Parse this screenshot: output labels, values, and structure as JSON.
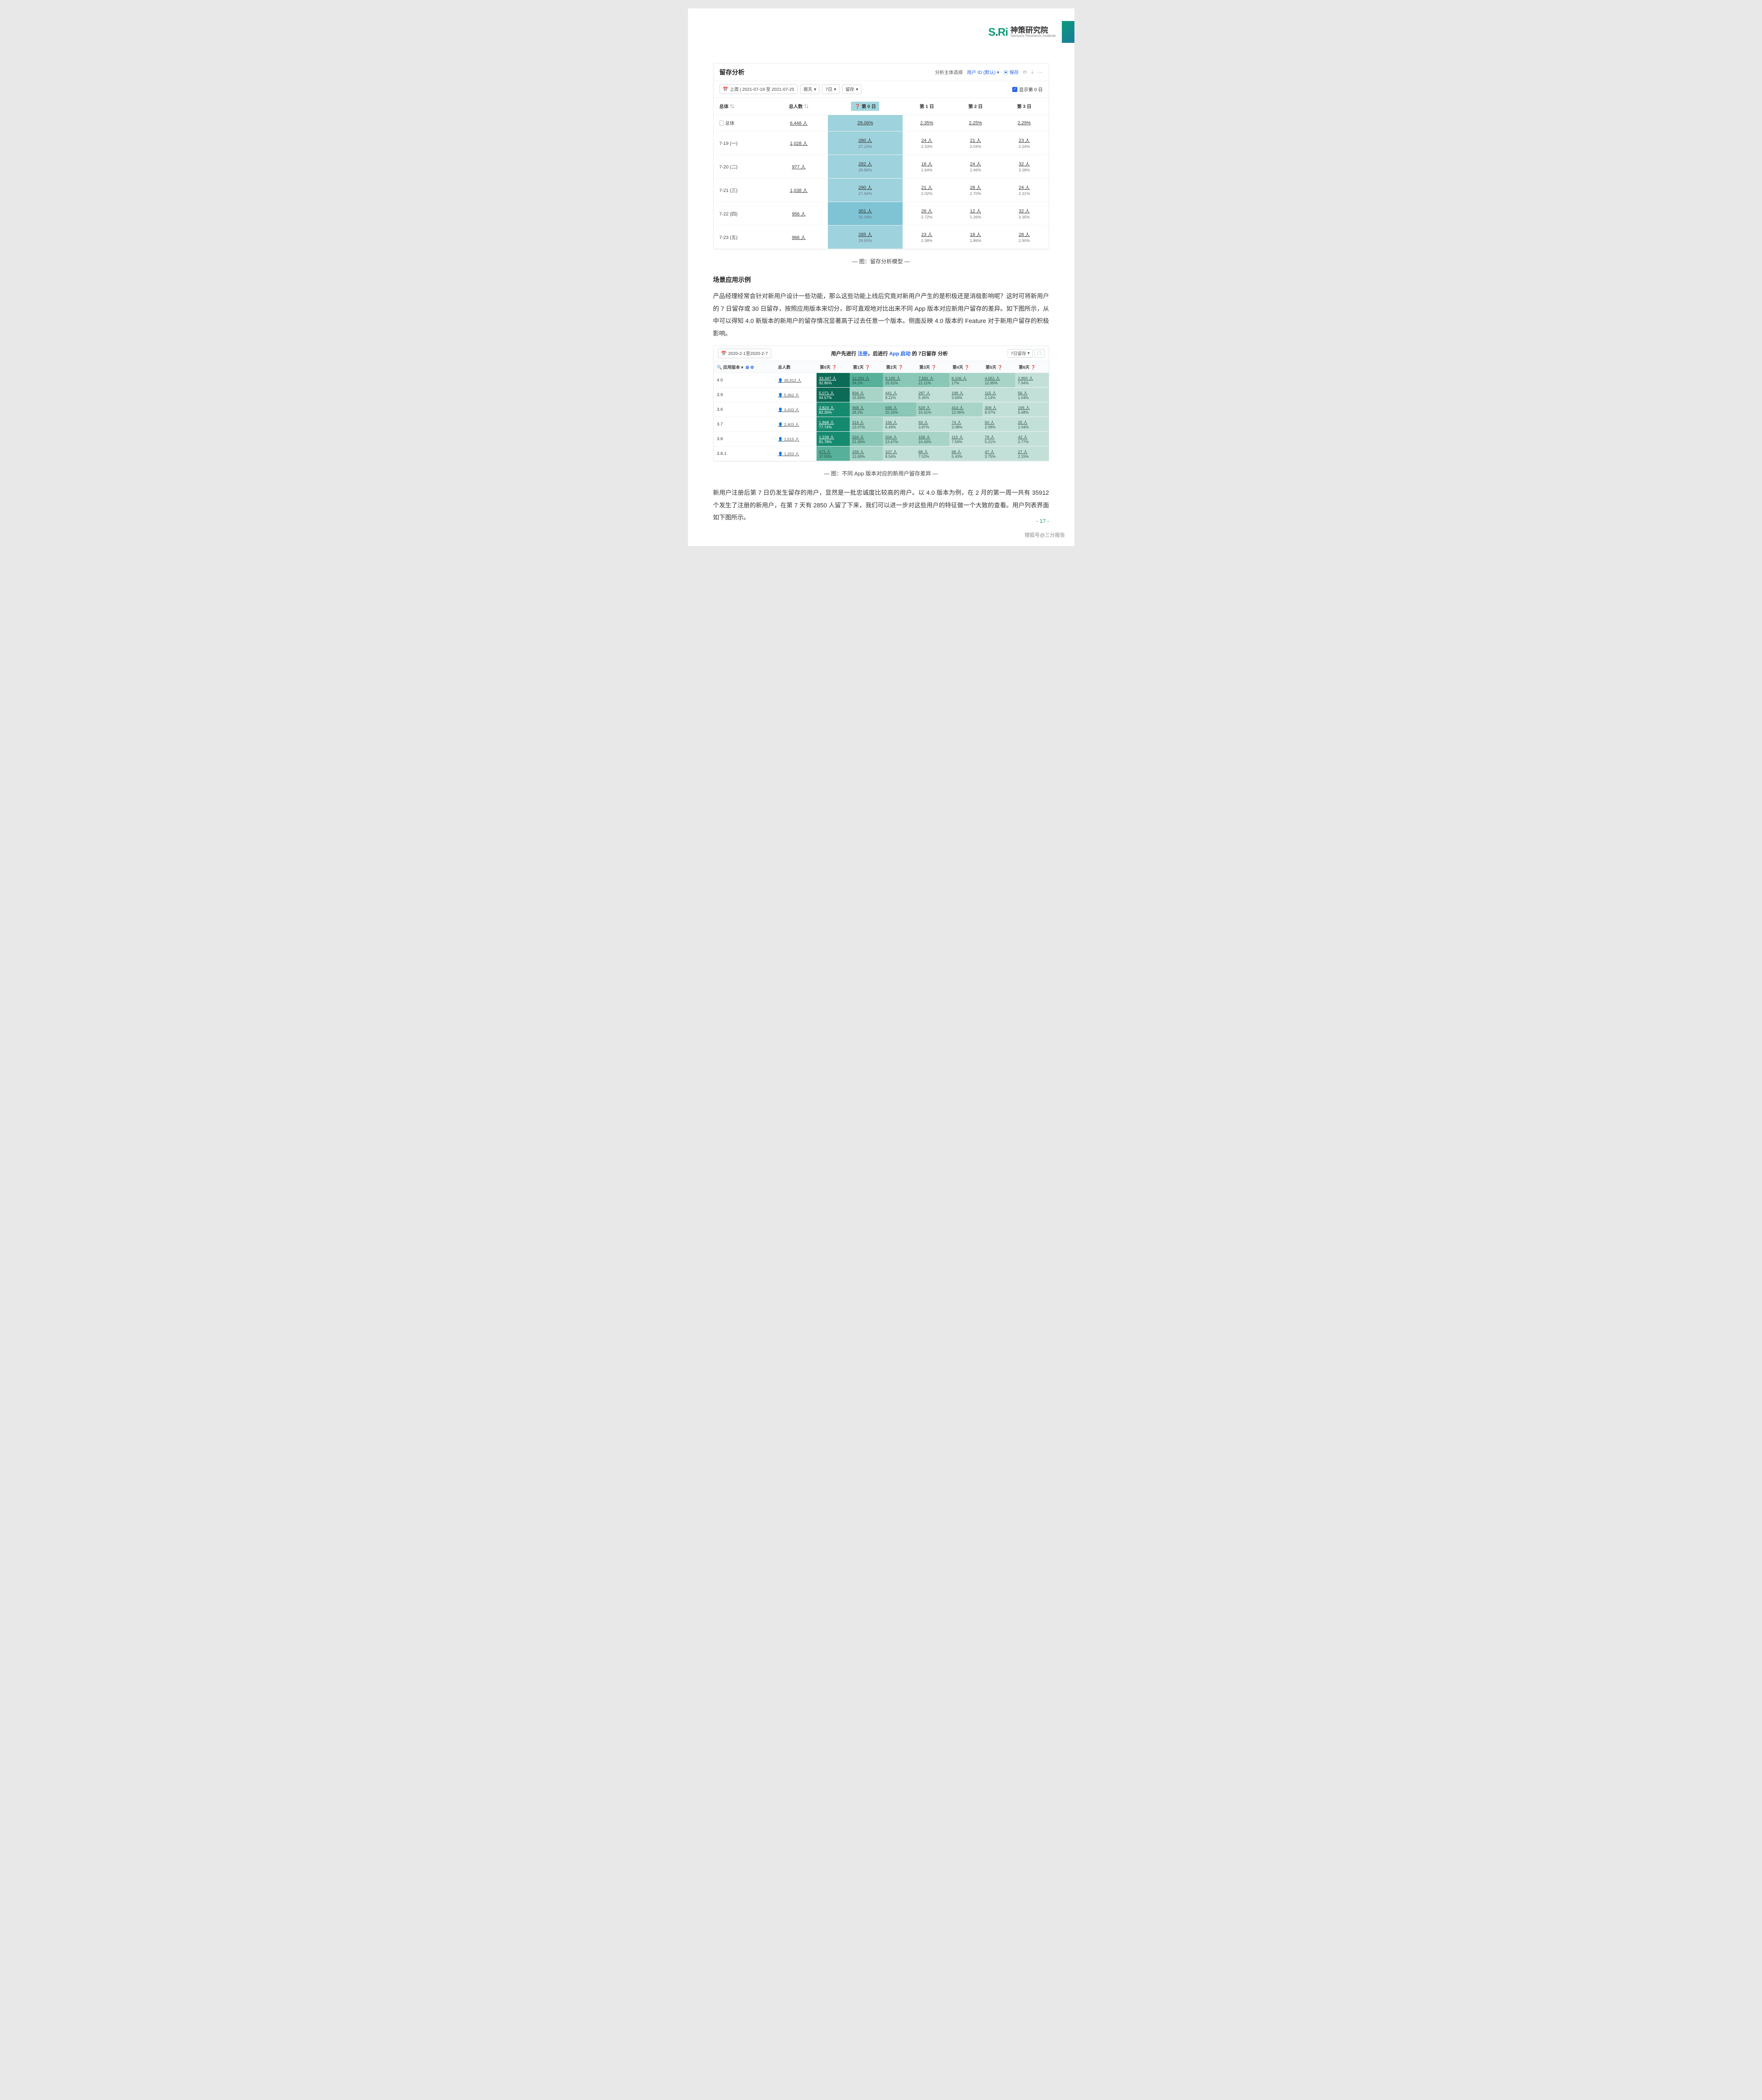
{
  "logo": {
    "mark_left": "S",
    "mark_mid": ".",
    "mark_right": "Ri",
    "cn": "神策研究院",
    "en": "Sensors Research Institute"
  },
  "card1": {
    "title": "留存分析",
    "hd": {
      "label": "分析主体选择",
      "sel": "用户 ID (默认)",
      "save": "保存"
    },
    "filters": {
      "date": "上周 | 2021-07-19 至 2021-07-25",
      "unit": "按天",
      "days": "7日",
      "type": "留存",
      "chk": "显示第 0 日"
    },
    "cols": [
      "总体",
      "总人数",
      "第 0 日",
      "第 1 日",
      "第 2 日",
      "第 3 日"
    ],
    "rows": [
      {
        "k": "总体",
        "n": "6,448 人",
        "d0": {
          "v": "",
          "p": "29.06%"
        },
        "d1": {
          "v": "",
          "p": "2.35%",
          "u": 1
        },
        "d2": {
          "v": "",
          "p": "2.25%",
          "u": 1
        },
        "d3": {
          "v": "",
          "p": "2.29%",
          "u": 1
        }
      },
      {
        "k": "7-19 (一)",
        "n": "1,028 人",
        "d0": {
          "v": "280 人",
          "p": "27.24%"
        },
        "d1": {
          "v": "24 人",
          "p": "2.33%"
        },
        "d2": {
          "v": "21 人",
          "p": "2.04%"
        },
        "d3": {
          "v": "23 人",
          "p": "2.24%"
        }
      },
      {
        "k": "7-20 (二)",
        "n": "977 人",
        "d0": {
          "v": "282 人",
          "p": "28.86%"
        },
        "d1": {
          "v": "16 人",
          "p": "1.64%"
        },
        "d2": {
          "v": "24 人",
          "p": "2.46%"
        },
        "d3": {
          "v": "32 人",
          "p": "3.28%"
        }
      },
      {
        "k": "7-21 (三)",
        "n": "1,038 人",
        "d0": {
          "v": "290 人",
          "p": "27.94%"
        },
        "d1": {
          "v": "21 人",
          "p": "2.02%"
        },
        "d2": {
          "v": "28 人",
          "p": "2.70%"
        },
        "d3": {
          "v": "24 人",
          "p": "2.31%"
        }
      },
      {
        "k": "7-22 (四)",
        "n": "956 人",
        "d0": {
          "v": "301 人",
          "p": "31.49%",
          "strong": 1
        },
        "d1": {
          "v": "26 人",
          "p": "2.72%"
        },
        "d2": {
          "v": "12 人",
          "p": "1.26%"
        },
        "d3": {
          "v": "32 人",
          "p": "3.35%"
        }
      },
      {
        "k": "7-23 (五)",
        "n": "966 人",
        "d0": {
          "v": "285 人",
          "p": "29.50%"
        },
        "d1": {
          "v": "23 人",
          "p": "2.38%"
        },
        "d2": {
          "v": "18 人",
          "p": "1.86%"
        },
        "d3": {
          "v": "28 人",
          "p": "2.90%"
        }
      }
    ]
  },
  "cap1": "—  图：留存分析模型  —",
  "h2": "场景应用示例",
  "p1": "产品经理经常会针对新用户设计一些功能，那么这些功能上线后究竟对新用户产生的是积极还是消极影响呢？这时可将新用户的 7 日留存或 30 日留存，按照应用版本来切分，即可直观地对比出来不同 App 版本对应新用户留存的差异。如下图所示，从中可以得知 4.0 新版本的新用户的留存情况显著高于过去任意一个版本。侧面反映 4.0 版本的 Feature 对于新用户留存的积极影响。",
  "card2": {
    "date": "2020-2-1至2020-2-7",
    "title": {
      "pre": "用户先进行 ",
      "a": "注册",
      "mid": "，后进行 ",
      "b": "App 启动",
      "suf": " 的 7日留存 分析"
    },
    "btn": "7日留存",
    "filter": "应用版本",
    "cols": [
      "总人数",
      "第0天",
      "第1天",
      "第2天",
      "第3天",
      "第4天",
      "第5天",
      "第6天"
    ],
    "colors": {
      "darkest": "#0c6b56",
      "dark": "#168a6f",
      "mid": "#56b09a",
      "light": "#8ac7b7",
      "lighter": "#a8d4c8",
      "lightest": "#c3e0d8"
    },
    "rows": [
      {
        "k": "4.0",
        "n": "35,912 人",
        "c": [
          {
            "v": "33,347 人",
            "p": "92.86%",
            "bg": "darkest"
          },
          {
            "v": "12,281 人",
            "p": "34.2%",
            "bg": "mid"
          },
          {
            "v": "9,165 人",
            "p": "25.52%",
            "bg": "light"
          },
          {
            "v": "7,581 人",
            "p": "21.11%",
            "bg": "light"
          },
          {
            "v": "6,106 人",
            "p": "17%",
            "bg": "lighter"
          },
          {
            "v": "4,651 人",
            "p": "12.95%",
            "bg": "lighter"
          },
          {
            "v": "2,850 人",
            "p": "7.94%",
            "bg": "lightest"
          }
        ]
      },
      {
        "k": "3.9",
        "n": "5,362 人",
        "c": [
          {
            "v": "5,071 人",
            "p": "94.57%",
            "bg": "darkest"
          },
          {
            "v": "834 人",
            "p": "15.55%",
            "bg": "lighter"
          },
          {
            "v": "441 人",
            "p": "8.22%",
            "bg": "lightest"
          },
          {
            "v": "287 人",
            "p": "5.35%",
            "bg": "lightest"
          },
          {
            "v": "198 人",
            "p": "3.69%",
            "bg": "lightest"
          },
          {
            "v": "115 人",
            "p": "2.14%",
            "bg": "lightest"
          },
          {
            "v": "56 人",
            "p": "1.04%",
            "bg": "lightest"
          }
        ]
      },
      {
        "k": "3.6",
        "n": "3,433 人",
        "c": [
          {
            "v": "2,824 人",
            "p": "82.26%",
            "bg": "dark"
          },
          {
            "v": "968 人",
            "p": "28.2%",
            "bg": "light"
          },
          {
            "v": "695 人",
            "p": "20.24%",
            "bg": "light"
          },
          {
            "v": "529 人",
            "p": "15.41%",
            "bg": "lighter"
          },
          {
            "v": "414 人",
            "p": "12.06%",
            "bg": "lighter"
          },
          {
            "v": "308 人",
            "p": "8.97%",
            "bg": "lightest"
          },
          {
            "v": "195 人",
            "p": "5.68%",
            "bg": "lightest"
          }
        ]
      },
      {
        "k": "3.7",
        "n": "2,403 人",
        "c": [
          {
            "v": "1,868 人",
            "p": "77.74%",
            "bg": "dark"
          },
          {
            "v": "314 人",
            "p": "13.07%",
            "bg": "lighter"
          },
          {
            "v": "156 人",
            "p": "6.49%",
            "bg": "lightest"
          },
          {
            "v": "93 人",
            "p": "3.87%",
            "bg": "lightest"
          },
          {
            "v": "74 人",
            "p": "3.08%",
            "bg": "lightest"
          },
          {
            "v": "50 人",
            "p": "2.08%",
            "bg": "lightest"
          },
          {
            "v": "25 人",
            "p": "1.04%",
            "bg": "lightest"
          }
        ]
      },
      {
        "k": "3.8",
        "n": "1,515 人",
        "c": [
          {
            "v": "1,239 人",
            "p": "81.78%",
            "bg": "dark"
          },
          {
            "v": "324 人",
            "p": "21.39%",
            "bg": "light"
          },
          {
            "v": "204 人",
            "p": "13.47%",
            "bg": "lighter"
          },
          {
            "v": "158 人",
            "p": "10.43%",
            "bg": "lighter"
          },
          {
            "v": "115 人",
            "p": "7.59%",
            "bg": "lightest"
          },
          {
            "v": "79 人",
            "p": "5.21%",
            "bg": "lightest"
          },
          {
            "v": "42 人",
            "p": "2.77%",
            "bg": "lightest"
          }
        ]
      },
      {
        "k": "3.8.1",
        "n": "1,253 人",
        "c": [
          {
            "v": "471 人",
            "p": "37.59%",
            "bg": "mid"
          },
          {
            "v": "159 人",
            "p": "12.69%",
            "bg": "lighter"
          },
          {
            "v": "107 人",
            "p": "8.54%",
            "bg": "lightest"
          },
          {
            "v": "88 人",
            "p": "7.02%",
            "bg": "lightest"
          },
          {
            "v": "68 人",
            "p": "5.43%",
            "bg": "lightest"
          },
          {
            "v": "47 人",
            "p": "3.75%",
            "bg": "lightest"
          },
          {
            "v": "27 人",
            "p": "2.15%",
            "bg": "lightest"
          }
        ]
      }
    ]
  },
  "cap2": "—  图：不同 App 版本对应的新用户留存差异  —",
  "p2": "新用户注册后第 7 日仍发生留存的用户，显然是一批忠诚度比较高的用户。以 4.0 版本为例，在 2 月的第一周一共有 35912 个发生了注册的新用户，在第 7 天有 2850 人留了下来，我们可以进一步对这些用户的特征做一个大致的查看。用户列表界面如下图所示。",
  "pagenum": "- 17 -",
  "footer": "搜狐号@三分报告"
}
